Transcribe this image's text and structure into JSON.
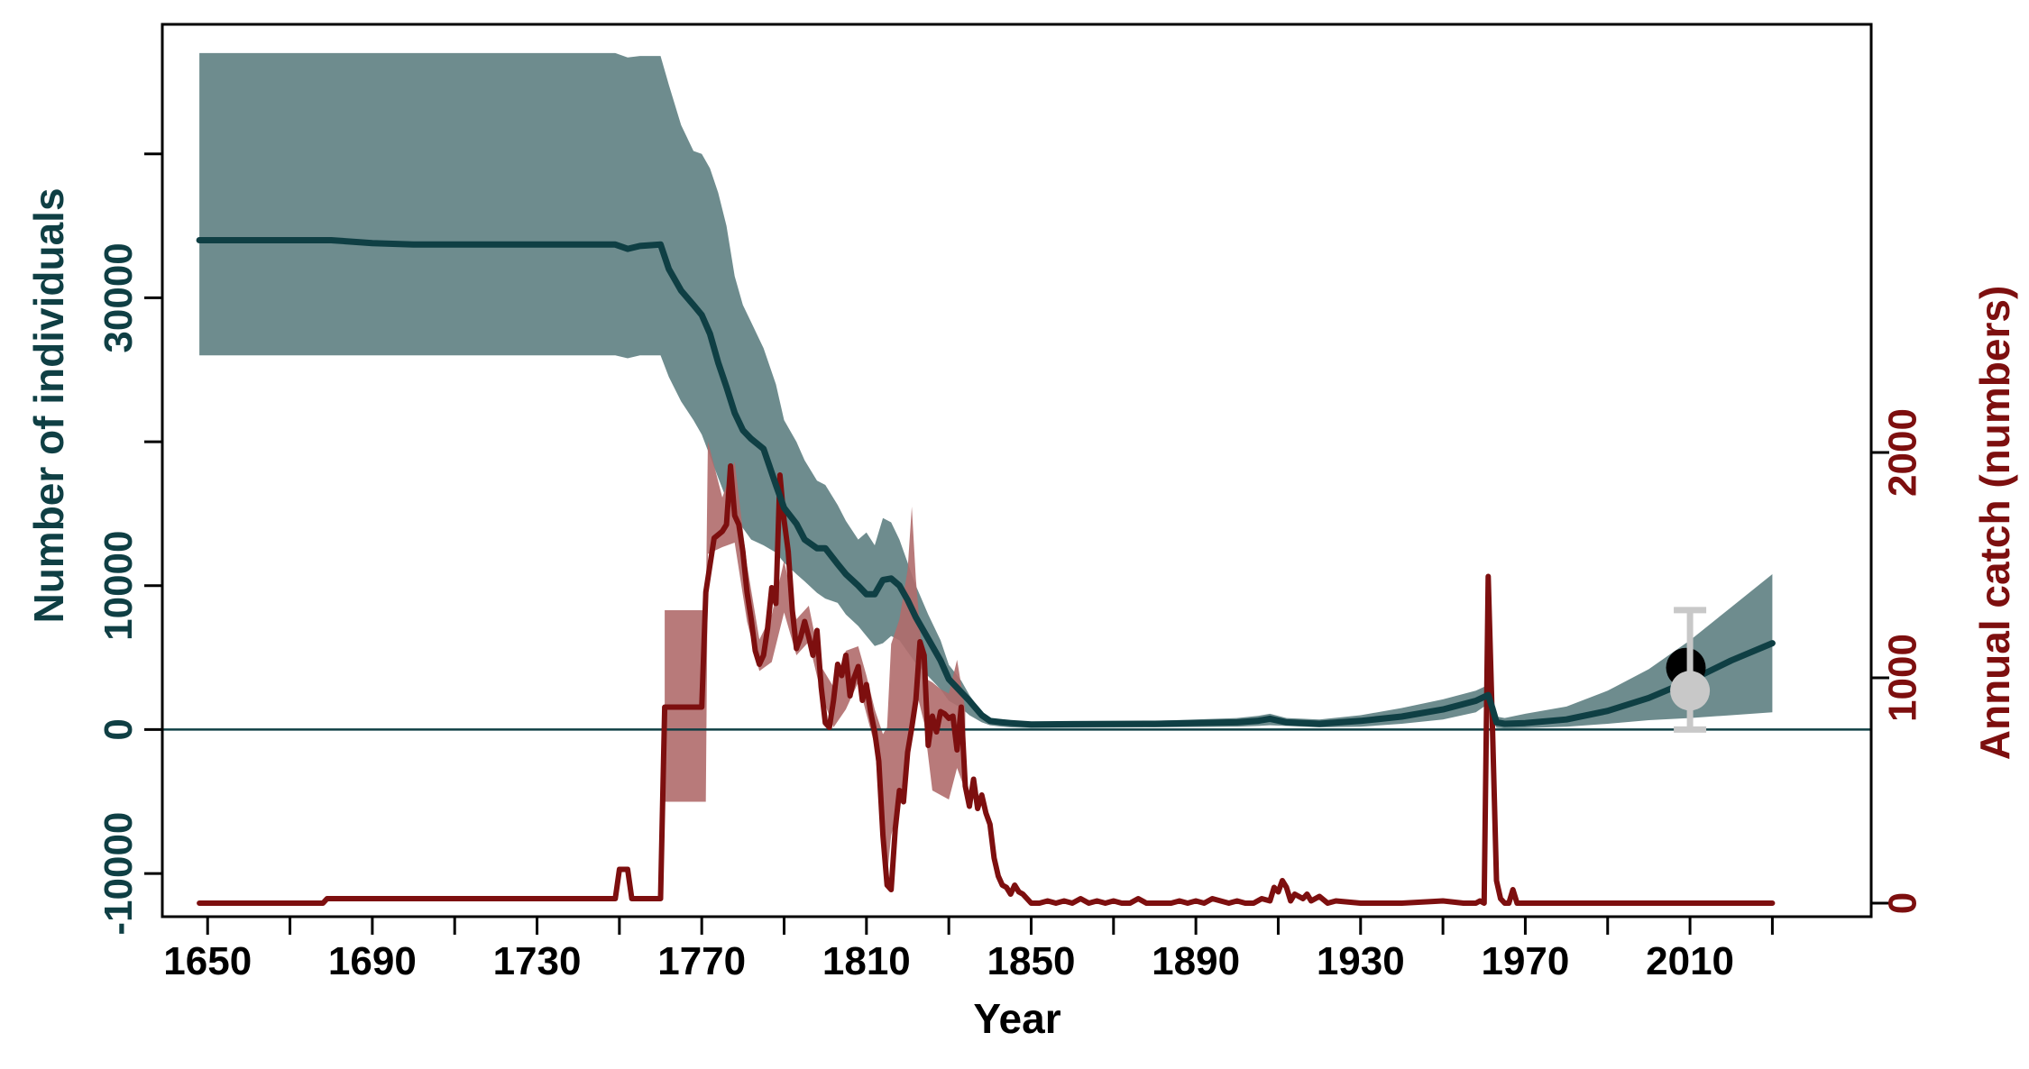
{
  "colors": {
    "population_line": "#0f3f44",
    "population_band": "#6e8c8e",
    "catch_line": "#7d0f0f",
    "catch_band": "#b06b6b",
    "zero_line": "#0f3f44",
    "estimate_black": "#000000",
    "estimate_grey": "#c8c8c8"
  },
  "chart_data": {
    "type": "line",
    "xlabel": "Year",
    "ylabel_left": "Number of individuals",
    "ylabel_right": "Annual catch (numbers)",
    "xlim": [
      1639,
      2054
    ],
    "ylim_left": [
      -13000,
      49000
    ],
    "ylim_right": [
      -60,
      3900
    ],
    "x_ticks": [
      1650,
      1690,
      1730,
      1770,
      1810,
      1850,
      1890,
      1930,
      1970,
      2010
    ],
    "x_minor_ticks": [
      1670,
      1710,
      1750,
      1790,
      1830,
      1870,
      1910,
      1950,
      1990,
      2030
    ],
    "y_left_ticks": [
      -10000,
      10000,
      30000
    ],
    "y_left_minor_ticks": [
      0,
      20000,
      40000
    ],
    "y_left_tick_labels": [
      "-10000",
      "0",
      "10000",
      "30000"
    ],
    "y_right_ticks": [
      0,
      1000,
      2000
    ],
    "y_right_tick_labels": [
      "0",
      "1000",
      "2000"
    ],
    "zero_reference": 0,
    "grid": false,
    "series": [
      {
        "axis": "left",
        "kind": "line_with_band",
        "x": [
          1648,
          1680,
          1690,
          1700,
          1740,
          1749,
          1752,
          1755,
          1760,
          1762,
          1765,
          1768,
          1770,
          1772,
          1774,
          1776,
          1778,
          1780,
          1782,
          1785,
          1788,
          1790,
          1793,
          1795,
          1798,
          1800,
          1803,
          1805,
          1808,
          1810,
          1812,
          1814,
          1816,
          1818,
          1820,
          1822,
          1825,
          1828,
          1830,
          1833,
          1835,
          1838,
          1840,
          1843,
          1845,
          1850,
          1860,
          1880,
          1900,
          1905,
          1908,
          1912,
          1920,
          1930,
          1940,
          1950,
          1958,
          1961,
          1962,
          1963,
          1965,
          1970,
          1980,
          1990,
          2000,
          2010,
          2020,
          2030
        ],
        "mean": [
          34000,
          34000,
          33800,
          33700,
          33700,
          33700,
          33400,
          33600,
          33700,
          32000,
          30500,
          29500,
          28800,
          27500,
          25500,
          23800,
          22000,
          20800,
          20200,
          19500,
          17000,
          15400,
          14300,
          13200,
          12600,
          12600,
          11500,
          10800,
          10000,
          9400,
          9400,
          10400,
          10500,
          10000,
          9000,
          7800,
          6300,
          4800,
          3500,
          2600,
          2000,
          1000,
          600,
          500,
          450,
          350,
          380,
          400,
          500,
          600,
          750,
          500,
          400,
          600,
          900,
          1400,
          2000,
          2400,
          1500,
          500,
          400,
          450,
          700,
          1300,
          2200,
          3400,
          4800,
          6000
        ],
        "lower": [
          26000,
          26000,
          26000,
          26000,
          26000,
          26000,
          25800,
          26000,
          26000,
          24500,
          22800,
          21500,
          20500,
          19000,
          17500,
          16000,
          15000,
          14000,
          13200,
          12800,
          12300,
          11600,
          10800,
          10300,
          9500,
          9100,
          8800,
          8000,
          7200,
          6500,
          5800,
          6000,
          6500,
          6200,
          5400,
          4600,
          3700,
          2800,
          2000,
          1500,
          1000,
          500,
          300,
          200,
          150,
          100,
          120,
          150,
          200,
          250,
          300,
          250,
          150,
          200,
          400,
          700,
          1200,
          1800,
          700,
          120,
          80,
          100,
          200,
          400,
          650,
          800,
          1000,
          1200
        ],
        "upper": [
          47000,
          47000,
          47000,
          47000,
          47000,
          47000,
          46700,
          46800,
          46800,
          44800,
          42000,
          40200,
          40000,
          39000,
          37300,
          35000,
          31500,
          29500,
          28300,
          26500,
          24000,
          21500,
          20000,
          18700,
          17300,
          17000,
          15600,
          14500,
          13200,
          13700,
          12800,
          14700,
          14400,
          13200,
          11600,
          10000,
          8000,
          6200,
          4500,
          3400,
          2400,
          1200,
          800,
          650,
          600,
          500,
          550,
          600,
          800,
          950,
          1100,
          800,
          700,
          1000,
          1500,
          2100,
          2700,
          3100,
          2400,
          900,
          800,
          1100,
          1600,
          2700,
          4200,
          6200,
          8500,
          10800
        ]
      },
      {
        "axis": "right",
        "kind": "line",
        "x": [
          1648,
          1678,
          1679,
          1749,
          1750,
          1751,
          1752,
          1753,
          1760,
          1761,
          1761.5,
          1770,
          1771,
          1773,
          1775,
          1776,
          1777,
          1778,
          1779,
          1780,
          1781,
          1782,
          1783,
          1784,
          1785,
          1786,
          1787,
          1788,
          1789,
          1790,
          1791,
          1792,
          1793,
          1794,
          1795,
          1796,
          1797,
          1798,
          1799,
          1800,
          1801,
          1802,
          1803,
          1804,
          1805,
          1806,
          1807,
          1808,
          1809,
          1810,
          1811,
          1812,
          1813,
          1814,
          1815,
          1816,
          1817,
          1818,
          1819,
          1820,
          1821,
          1822,
          1823,
          1824,
          1825,
          1826,
          1827,
          1828,
          1829,
          1830,
          1831,
          1832,
          1833,
          1834,
          1835,
          1836,
          1837,
          1838,
          1839,
          1840,
          1841,
          1842,
          1843,
          1844,
          1845,
          1846,
          1847,
          1848,
          1849,
          1850,
          1852,
          1854,
          1856,
          1858,
          1860,
          1862,
          1864,
          1866,
          1868,
          1870,
          1872,
          1874,
          1876,
          1878,
          1880,
          1882,
          1884,
          1886,
          1888,
          1890,
          1892,
          1894,
          1896,
          1898,
          1900,
          1902,
          1904,
          1906,
          1908,
          1909,
          1910,
          1911,
          1912,
          1913,
          1914,
          1915,
          1916,
          1917,
          1918,
          1920,
          1922,
          1924,
          1930,
          1940,
          1950,
          1955,
          1958,
          1959,
          1960,
          1961,
          1962,
          1963,
          1964,
          1965,
          1966,
          1967,
          1968,
          1970,
          2030
        ],
        "values": [
          0,
          0,
          20,
          20,
          150,
          150,
          150,
          20,
          20,
          870,
          870,
          870,
          1380,
          1620,
          1650,
          1680,
          1940,
          1720,
          1680,
          1560,
          1380,
          1260,
          1120,
          1060,
          1100,
          1220,
          1400,
          1330,
          1900,
          1700,
          1560,
          1300,
          1130,
          1180,
          1250,
          1180,
          1100,
          1210,
          960,
          800,
          780,
          900,
          1060,
          1010,
          1100,
          920,
          1000,
          1050,
          900,
          970,
          850,
          760,
          630,
          300,
          80,
          60,
          330,
          500,
          450,
          670,
          780,
          900,
          1160,
          1100,
          700,
          830,
          760,
          850,
          840,
          820,
          830,
          680,
          870,
          520,
          430,
          550,
          420,
          480,
          400,
          350,
          200,
          120,
          80,
          70,
          40,
          80,
          50,
          40,
          20,
          0,
          0,
          10,
          0,
          10,
          0,
          20,
          0,
          10,
          0,
          10,
          0,
          0,
          20,
          0,
          0,
          0,
          0,
          10,
          0,
          10,
          0,
          20,
          10,
          0,
          10,
          0,
          0,
          20,
          10,
          70,
          50,
          100,
          70,
          10,
          40,
          30,
          20,
          40,
          10,
          30,
          0,
          10,
          0,
          0,
          10,
          0,
          0,
          10,
          0,
          1450,
          800,
          100,
          20,
          0,
          0,
          60,
          0,
          0,
          0
        ]
      },
      {
        "axis": "right",
        "kind": "band",
        "x": [
          1761,
          1771,
          1771.5,
          1775,
          1778,
          1781,
          1784,
          1787,
          1790,
          1793,
          1796,
          1799,
          1802,
          1805,
          1808,
          1810,
          1812,
          1814,
          1815,
          1816,
          1818,
          1820,
          1821,
          1822,
          1824,
          1826,
          1828,
          1830,
          1832,
          1834
        ],
        "lower": [
          450,
          450,
          1550,
          1580,
          1600,
          1250,
          1030,
          1070,
          1290,
          1100,
          1160,
          930,
          780,
          860,
          980,
          840,
          700,
          280,
          120,
          300,
          450,
          650,
          720,
          950,
          800,
          500,
          480,
          460,
          600,
          500
        ],
        "upper": [
          1300,
          1300,
          2050,
          1800,
          1960,
          1500,
          1170,
          1280,
          1520,
          1260,
          1320,
          1050,
          960,
          1120,
          1140,
          1010,
          860,
          750,
          780,
          1150,
          1260,
          1480,
          1760,
          1440,
          1000,
          980,
          950,
          930,
          1080,
          860
        ]
      }
    ],
    "estimates": [
      {
        "x": 2009,
        "y": 4300,
        "axis": "left",
        "color": "black"
      },
      {
        "x": 2010,
        "y": 2700,
        "lower": 0,
        "upper": 8300,
        "axis": "left",
        "color": "grey"
      }
    ]
  }
}
